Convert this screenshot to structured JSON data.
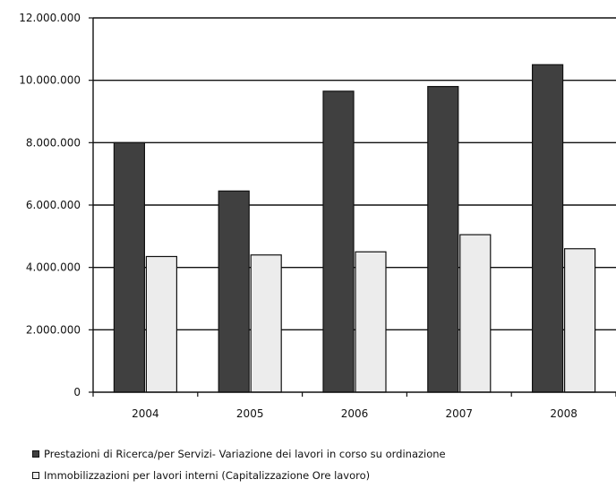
{
  "chart_data": {
    "type": "bar",
    "categories": [
      "2004",
      "2005",
      "2006",
      "2007",
      "2008"
    ],
    "series": [
      {
        "name": "Prestazioni di Ricerca/per Servizi- Variazione dei lavori in corso su ordinazione",
        "values": [
          8000000,
          6450000,
          9650000,
          9800000,
          10500000
        ],
        "color": "#404040"
      },
      {
        "name": "Immobilizzazioni per lavori interni (Capitalizzazione Ore lavoro)",
        "values": [
          4350000,
          4400000,
          4500000,
          5050000,
          4600000
        ],
        "color": "#ececec"
      }
    ],
    "ylim": [
      0,
      12000000
    ],
    "yticks": [
      0,
      2000000,
      4000000,
      6000000,
      8000000,
      10000000,
      12000000
    ],
    "ytick_labels": [
      "0",
      "2.000.000",
      "4.000.000",
      "6.000.000",
      "8.000.000",
      "10.000.000",
      "12.000.000"
    ],
    "grid": true,
    "legend_position": "bottom",
    "title": "",
    "xlabel": "",
    "ylabel": ""
  }
}
